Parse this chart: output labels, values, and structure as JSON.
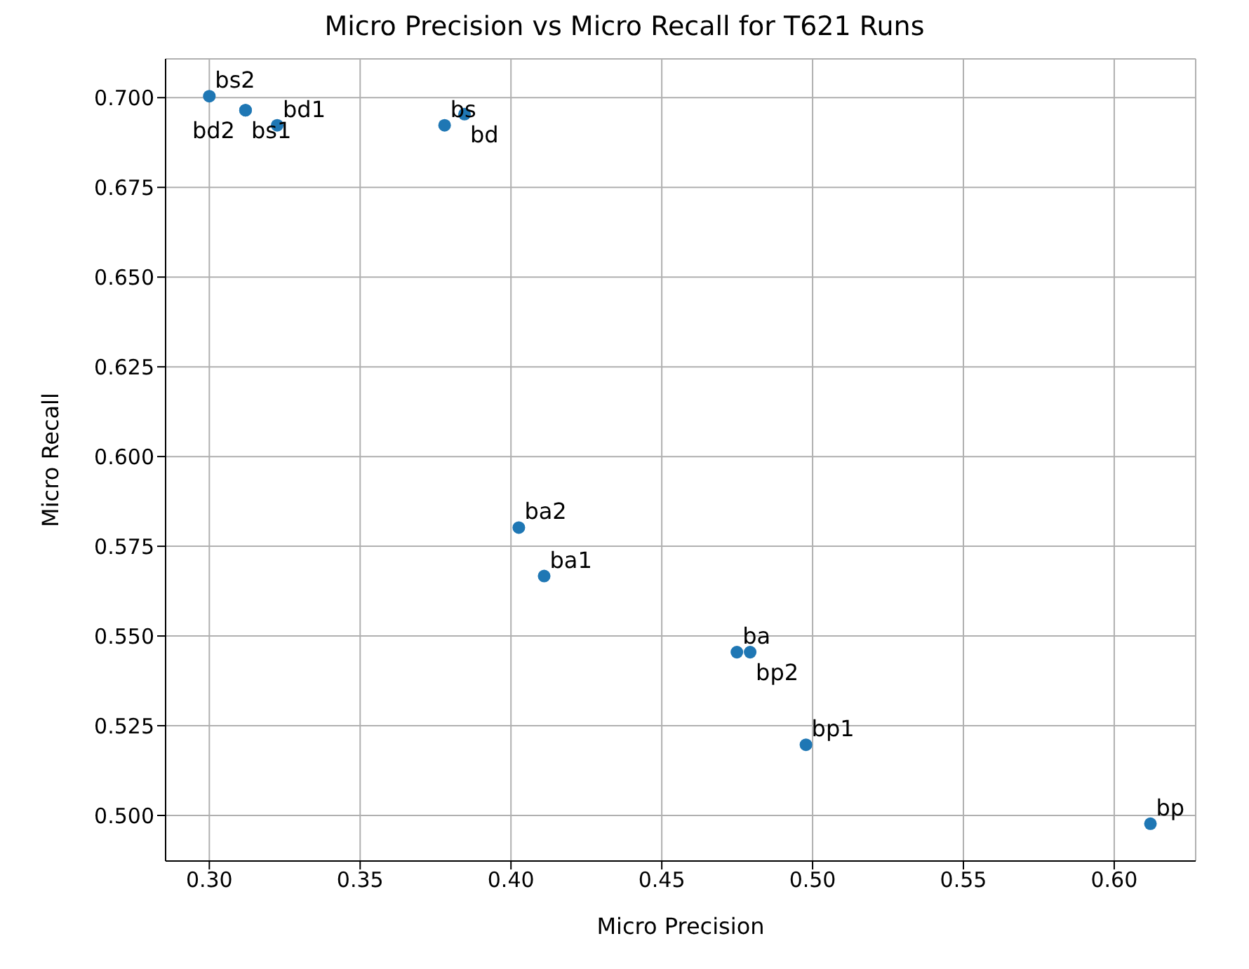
{
  "chart_data": {
    "type": "scatter",
    "title": "Micro Precision vs Micro Recall for T621 Runs",
    "xlabel": "Micro Precision",
    "ylabel": "Micro Recall",
    "x": [
      0.3,
      0.312,
      0.312,
      0.3225,
      0.378,
      0.3846,
      0.4026,
      0.411,
      0.4749,
      0.4793,
      0.4978,
      0.612
    ],
    "series": [
      {
        "color": "#1f77b4",
        "values": [
          0.7004,
          0.6965,
          0.6965,
          0.6923,
          0.6923,
          0.6954,
          0.5802,
          0.5667,
          0.5455,
          0.5455,
          0.5197,
          0.4977
        ],
        "value_labels": [
          "bs2",
          "bs1",
          "bd2",
          "bd1",
          "bs",
          "bd",
          "ba2",
          "ba1",
          "ba",
          "bp2",
          "bp1",
          "bp"
        ]
      }
    ],
    "xlim": [
      0.2855,
      0.627
    ],
    "ylim": [
      0.4873,
      0.7108
    ],
    "xticks": [
      {
        "value": 0.3,
        "label": "0.30"
      },
      {
        "value": 0.35,
        "label": "0.35"
      },
      {
        "value": 0.4,
        "label": "0.40"
      },
      {
        "value": 0.45,
        "label": "0.45"
      },
      {
        "value": 0.5,
        "label": "0.50"
      },
      {
        "value": 0.55,
        "label": "0.55"
      },
      {
        "value": 0.6,
        "label": "0.60"
      }
    ],
    "yticks": [
      {
        "value": 0.5,
        "label": "0.500"
      },
      {
        "value": 0.525,
        "label": "0.525"
      },
      {
        "value": 0.55,
        "label": "0.550"
      },
      {
        "value": 0.575,
        "label": "0.575"
      },
      {
        "value": 0.6,
        "label": "0.600"
      },
      {
        "value": 0.625,
        "label": "0.625"
      },
      {
        "value": 0.65,
        "label": "0.650"
      },
      {
        "value": 0.675,
        "label": "0.675"
      },
      {
        "value": 0.7,
        "label": "0.700"
      }
    ],
    "grid": true,
    "marker": "circle"
  }
}
